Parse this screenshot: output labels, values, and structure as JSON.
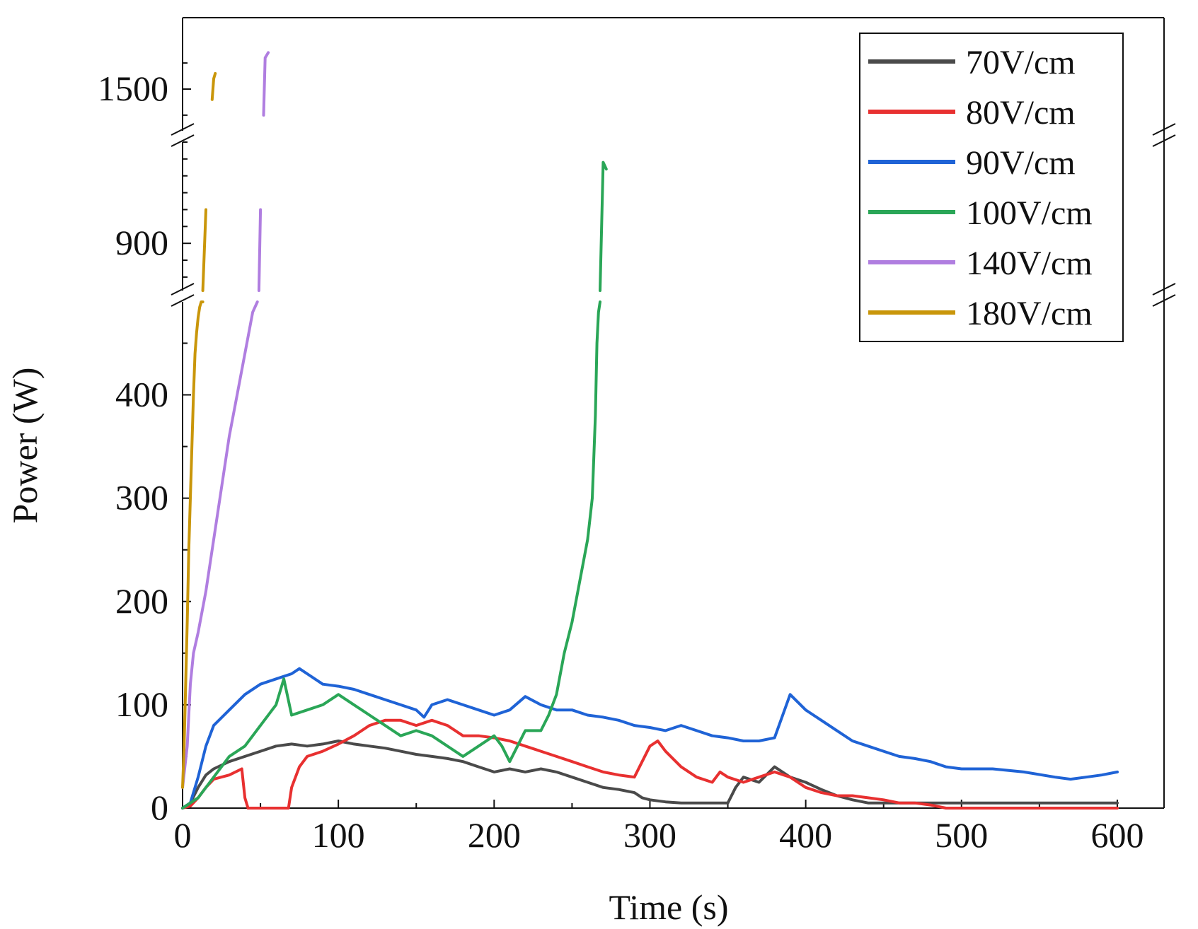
{
  "chart_data": {
    "type": "line",
    "title": "",
    "xlabel": "Time (s)",
    "ylabel": "Power (W)",
    "xlim": [
      0,
      630
    ],
    "ylim_segments": [
      [
        0,
        490
      ],
      [
        760,
        1200
      ],
      [
        1420,
        1580
      ]
    ],
    "xticks": [
      "0",
      "100",
      "200",
      "300",
      "400",
      "500",
      "600"
    ],
    "xtick_values": [
      0,
      100,
      200,
      300,
      400,
      500,
      600
    ],
    "yticks": [
      "0",
      "100",
      "200",
      "300",
      "400",
      "900",
      "1500"
    ],
    "ytick_values": [
      0,
      100,
      200,
      300,
      400,
      900,
      1500
    ],
    "legend_position": "top-right",
    "series": [
      {
        "name": "70V/cm",
        "color": "#4a4a4a",
        "x": [
          0,
          5,
          10,
          15,
          20,
          30,
          40,
          50,
          60,
          70,
          80,
          90,
          100,
          110,
          120,
          130,
          140,
          150,
          160,
          170,
          180,
          190,
          200,
          210,
          220,
          230,
          240,
          250,
          260,
          270,
          280,
          290,
          295,
          300,
          310,
          320,
          330,
          340,
          350,
          355,
          360,
          370,
          380,
          390,
          400,
          410,
          420,
          430,
          440,
          450,
          500,
          550,
          600
        ],
        "y": [
          0,
          5,
          20,
          32,
          38,
          45,
          50,
          55,
          60,
          62,
          60,
          62,
          65,
          62,
          60,
          58,
          55,
          52,
          50,
          48,
          45,
          40,
          35,
          38,
          35,
          38,
          35,
          30,
          25,
          20,
          18,
          15,
          10,
          8,
          6,
          5,
          5,
          5,
          5,
          20,
          30,
          25,
          40,
          30,
          25,
          18,
          12,
          8,
          5,
          5,
          5,
          5,
          5
        ]
      },
      {
        "name": "80V/cm",
        "color": "#e83030",
        "x": [
          0,
          5,
          10,
          15,
          20,
          30,
          38,
          40,
          42,
          45,
          60,
          65,
          68,
          70,
          75,
          80,
          90,
          100,
          110,
          120,
          130,
          140,
          150,
          160,
          170,
          180,
          190,
          200,
          210,
          220,
          230,
          240,
          250,
          260,
          270,
          280,
          290,
          295,
          300,
          305,
          310,
          320,
          330,
          340,
          345,
          350,
          360,
          370,
          380,
          390,
          400,
          410,
          420,
          430,
          440,
          450,
          460,
          470,
          480,
          490,
          500,
          550,
          600
        ],
        "y": [
          0,
          2,
          10,
          20,
          28,
          32,
          38,
          10,
          0,
          0,
          0,
          0,
          0,
          20,
          40,
          50,
          55,
          62,
          70,
          80,
          85,
          85,
          80,
          85,
          80,
          70,
          70,
          68,
          65,
          60,
          55,
          50,
          45,
          40,
          35,
          32,
          30,
          45,
          60,
          65,
          55,
          40,
          30,
          25,
          35,
          30,
          25,
          30,
          35,
          30,
          20,
          15,
          12,
          12,
          10,
          8,
          5,
          5,
          3,
          0,
          0,
          0,
          0
        ]
      },
      {
        "name": "90V/cm",
        "color": "#1f63d6",
        "x": [
          0,
          5,
          10,
          15,
          20,
          30,
          40,
          50,
          60,
          70,
          75,
          80,
          90,
          100,
          110,
          120,
          130,
          140,
          150,
          155,
          160,
          170,
          180,
          190,
          200,
          210,
          220,
          230,
          240,
          250,
          260,
          270,
          280,
          290,
          300,
          310,
          320,
          330,
          340,
          350,
          360,
          370,
          380,
          390,
          400,
          410,
          420,
          430,
          440,
          450,
          460,
          470,
          480,
          490,
          500,
          520,
          540,
          560,
          570,
          580,
          590,
          600
        ],
        "y": [
          0,
          5,
          30,
          60,
          80,
          95,
          110,
          120,
          125,
          130,
          135,
          130,
          120,
          118,
          115,
          110,
          105,
          100,
          95,
          88,
          100,
          105,
          100,
          95,
          90,
          95,
          108,
          100,
          95,
          95,
          90,
          88,
          85,
          80,
          78,
          75,
          80,
          75,
          70,
          68,
          65,
          65,
          68,
          110,
          95,
          85,
          75,
          65,
          60,
          55,
          50,
          48,
          45,
          40,
          38,
          38,
          35,
          30,
          28,
          30,
          32,
          35
        ]
      },
      {
        "name": "100V/cm",
        "color": "#2aa657",
        "x": [
          0,
          5,
          10,
          15,
          20,
          30,
          40,
          50,
          60,
          65,
          70,
          80,
          90,
          100,
          110,
          120,
          130,
          140,
          150,
          160,
          170,
          180,
          190,
          200,
          205,
          210,
          215,
          220,
          230,
          235,
          240,
          245,
          250,
          255,
          260,
          263,
          265,
          266,
          267,
          268,
          268,
          270,
          272
        ],
        "y": [
          0,
          5,
          10,
          20,
          30,
          50,
          60,
          80,
          100,
          125,
          90,
          95,
          100,
          110,
          100,
          90,
          80,
          70,
          75,
          70,
          60,
          50,
          60,
          70,
          60,
          45,
          60,
          75,
          75,
          90,
          110,
          150,
          180,
          220,
          260,
          300,
          380,
          450,
          480,
          490,
          760,
          1140,
          1120
        ]
      },
      {
        "name": "140V/cm",
        "color": "#b07ee0",
        "x": [
          0,
          3,
          5,
          7,
          10,
          15,
          20,
          25,
          30,
          35,
          40,
          45,
          48,
          49,
          50,
          52,
          53,
          55
        ],
        "y": [
          20,
          60,
          120,
          150,
          170,
          210,
          260,
          310,
          360,
          400,
          440,
          480,
          490,
          760,
          1000,
          1450,
          1560,
          1570
        ]
      },
      {
        "name": "180V/cm",
        "color": "#c9960a",
        "x": [
          0,
          1,
          2,
          3,
          4,
          5,
          6,
          7,
          8,
          9,
          10,
          11,
          12,
          13,
          13,
          15,
          17,
          19,
          20,
          21
        ],
        "y": [
          20,
          60,
          120,
          180,
          250,
          300,
          350,
          400,
          440,
          460,
          475,
          485,
          490,
          490,
          760,
          1000,
          1250,
          1480,
          1520,
          1530
        ]
      }
    ]
  }
}
